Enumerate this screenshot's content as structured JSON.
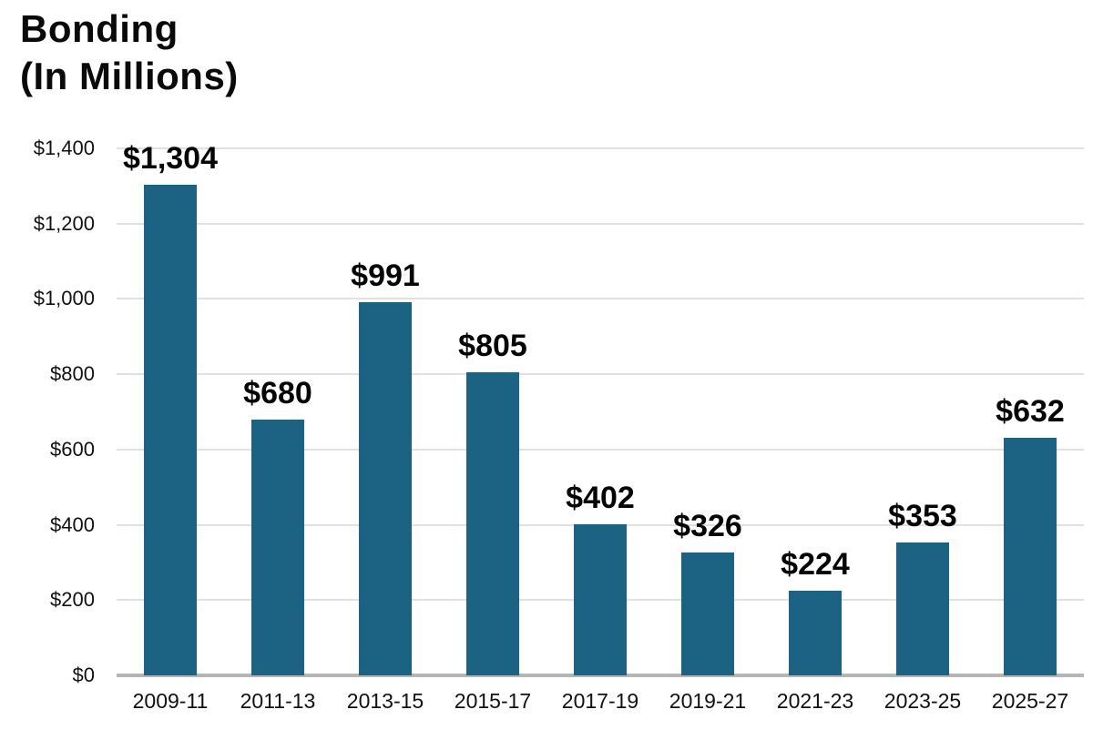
{
  "chart_data": {
    "type": "bar",
    "title": "Bonding (In Millions)",
    "title_lines": [
      "Bonding",
      "(In Millions)"
    ],
    "categories": [
      "2009-11",
      "2011-13",
      "2013-15",
      "2015-17",
      "2017-19",
      "2019-21",
      "2021-23",
      "2023-25",
      "2025-27"
    ],
    "values": [
      1304,
      680,
      991,
      805,
      402,
      326,
      224,
      353,
      632
    ],
    "value_labels": [
      "$1,304",
      "$680",
      "$991",
      "$805",
      "$402",
      "$326",
      "$224",
      "$353",
      "$632"
    ],
    "y_ticks": [
      0,
      200,
      400,
      600,
      800,
      1000,
      1200,
      1400
    ],
    "y_tick_labels": [
      "$0",
      "$200",
      "$400",
      "$600",
      "$800",
      "$1,000",
      "$1,200",
      "$1,400"
    ],
    "ylim": [
      0,
      1400
    ],
    "xlabel": "",
    "ylabel": "",
    "grid": "horizontal",
    "legend": "none",
    "colors": {
      "bar": "#1c6282",
      "gridline": "#e0e0e0",
      "axis_line": "#b5b5b5",
      "text": "#050505",
      "background": "#ffffff"
    }
  }
}
